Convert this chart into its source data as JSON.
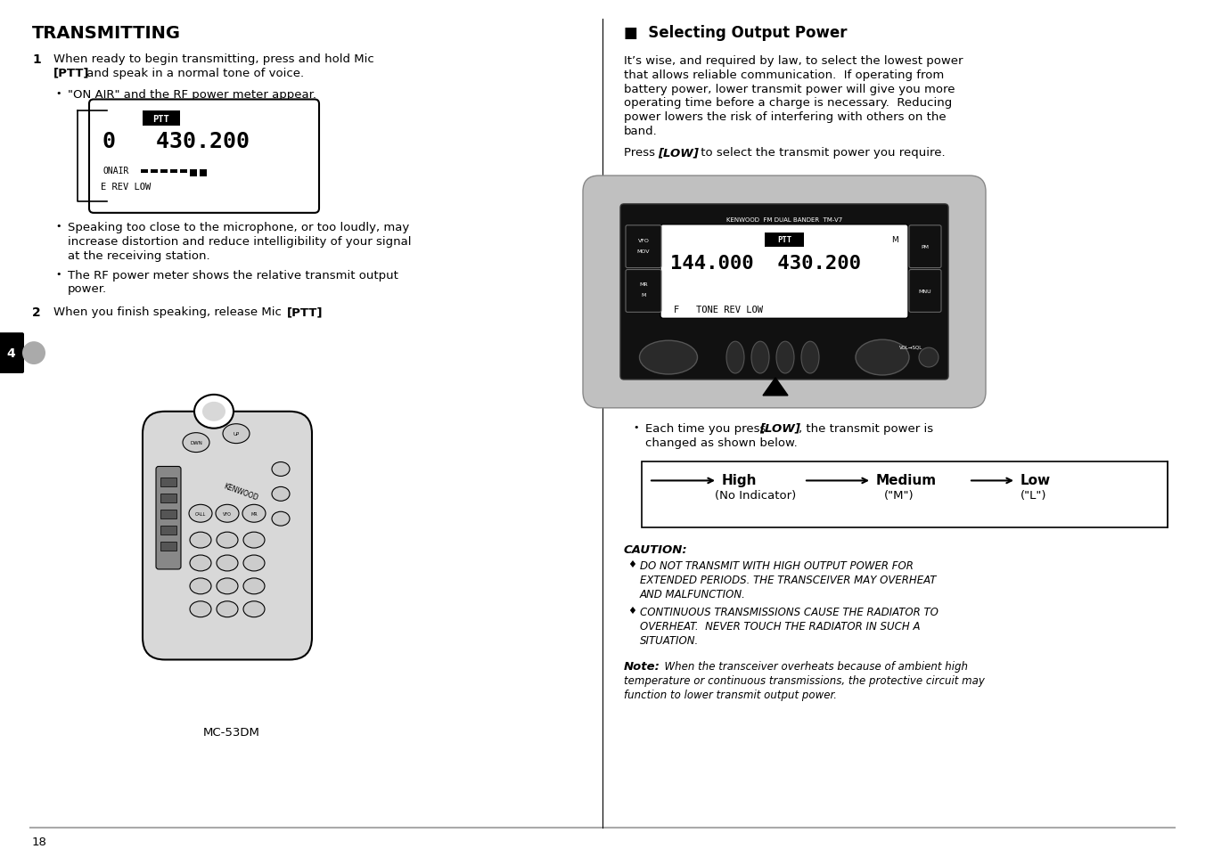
{
  "bg_color": "#ffffff",
  "page_number": "18",
  "left_title": "TRANSMITTING",
  "right_title": "Selecting Output Power",
  "chapter_num": "4",
  "body_text_size": 9.5,
  "left_content": {
    "step1_text_line1": "When ready to begin transmitting, press and hold Mic",
    "step1_text_line2_a": "[PTT]",
    "step1_text_line2_b": " and speak in a normal tone of voice.",
    "bullet1": "\"ON AIR\" and the RF power meter appear.",
    "bullet2a": "Speaking too close to the microphone, or too loudly, may",
    "bullet2b": "increase distortion and reduce intelligibility of your signal",
    "bullet2c": "at the receiving station.",
    "bullet3a": "The RF power meter shows the relative transmit output",
    "bullet3b": "power.",
    "step2_a": "When you finish speaking, release Mic ",
    "step2_bold": "[PTT]",
    "step2_end": ".",
    "mc53dm_label": "MC-53DM"
  },
  "right_content": {
    "para1a": "It’s wise, and required by law, to select the lowest power",
    "para1b": "that allows reliable communication.  If operating from",
    "para1c": "battery power, lower transmit power will give you more",
    "para1d": "operating time before a charge is necessary.  Reducing",
    "para1e": "power lowers the risk of interfering with others on the",
    "para1f": "band.",
    "press_a": "Press ",
    "press_bold": "[LOW]",
    "press_b": " to select the transmit power you require.",
    "bullet_a": "Each time you press ",
    "bullet_bold": "[LOW]",
    "bullet_b": ", the transmit power is",
    "bullet_c": "changed as shown below.",
    "box_high": "High",
    "box_high_sub": "(No Indicator)",
    "box_medium": "Medium",
    "box_medium_sub": "(\"M\")",
    "box_low": "Low",
    "box_low_sub": "(\"L\")",
    "caution_title": "CAUTION:",
    "caution1a": "DO NOT TRANSMIT WITH HIGH OUTPUT POWER FOR",
    "caution1b": "EXTENDED PERIODS. THE TRANSCEIVER MAY OVERHEAT",
    "caution1c": "AND MALFUNCTION.",
    "caution2a": "CONTINUOUS TRANSMISSIONS CAUSE THE RADIATOR TO",
    "caution2b": "OVERHEAT.  NEVER TOUCH THE RADIATOR IN SUCH A",
    "caution2c": "SITUATION.",
    "note_bold": "Note:",
    "note1": "  When the transceiver overheats because of ambient high",
    "note2": "temperature or continuous transmissions, the protective circuit may",
    "note3": "function to lower transmit output power."
  }
}
